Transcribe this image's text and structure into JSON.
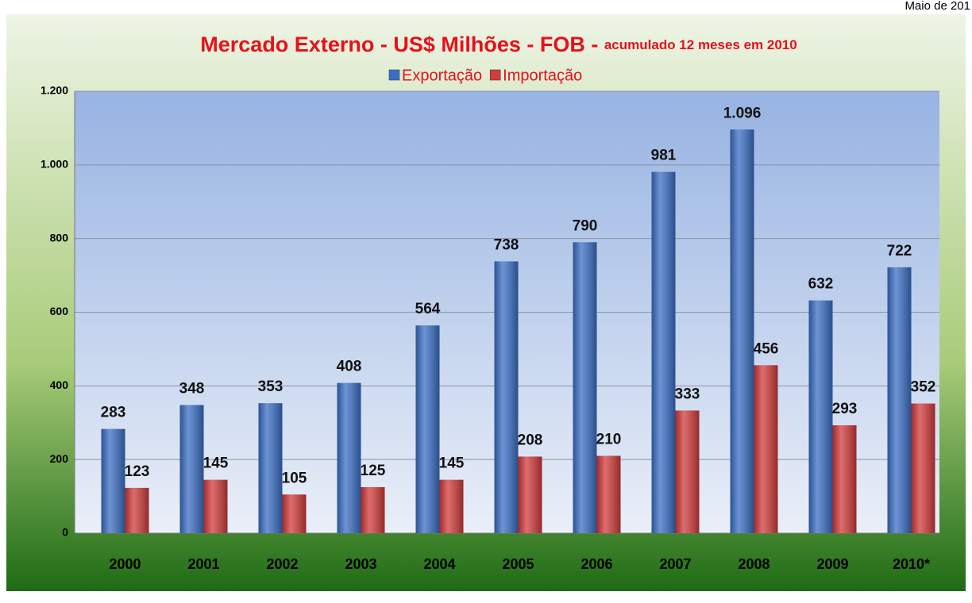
{
  "header": {
    "date": "Maio de 201"
  },
  "chart_data": {
    "type": "bar",
    "title": "Mercado Externo - US$ Milhões - FOB - ",
    "subtitle": "acumulado 12 meses em 2010",
    "categories": [
      "2000",
      "2001",
      "2002",
      "2003",
      "2004",
      "2005",
      "2006",
      "2007",
      "2008",
      "2009",
      "2010*"
    ],
    "series": [
      {
        "name": "Exportação",
        "color": "#3b6fc6",
        "values": [
          283,
          348,
          353,
          408,
          564,
          738,
          790,
          981,
          1096,
          632,
          722
        ],
        "value_labels": [
          "283",
          "348",
          "353",
          "408",
          "564",
          "738",
          "790",
          "981",
          "1.096",
          "632",
          "722"
        ]
      },
      {
        "name": "Importação",
        "color": "#d43b3b",
        "values": [
          123,
          145,
          105,
          125,
          145,
          208,
          210,
          333,
          456,
          293,
          352
        ]
      }
    ],
    "ylim": [
      0,
      1200
    ],
    "yticks": [
      0,
      200,
      400,
      600,
      800,
      {
        "value": 1000,
        "label": "1.000"
      },
      {
        "value": 1200,
        "label": "1.200"
      }
    ],
    "grid": true,
    "legend": "top"
  }
}
